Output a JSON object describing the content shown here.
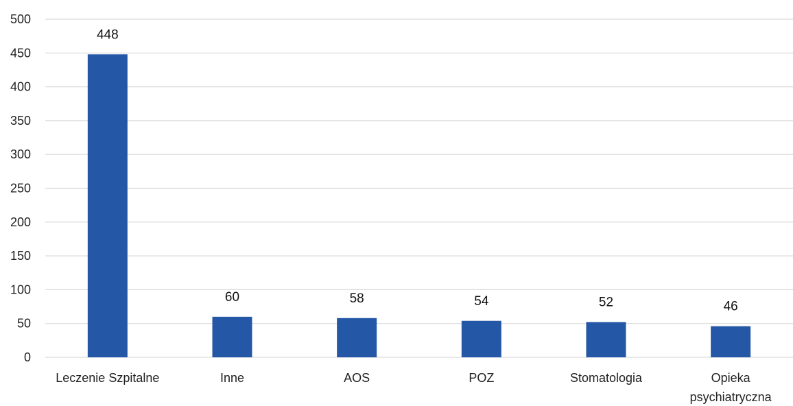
{
  "chart_data": {
    "type": "bar",
    "title": "",
    "xlabel": "",
    "ylabel": "",
    "categories": [
      "Leczenie Szpitalne",
      "Inne",
      "AOS",
      "POZ",
      "Stomatologia",
      [
        "Opieka",
        "psychiatryczna"
      ]
    ],
    "values": [
      448,
      60,
      58,
      54,
      52,
      46
    ],
    "data_labels": [
      "448",
      "60",
      "58",
      "54",
      "52",
      "46"
    ],
    "ylim": [
      0,
      500
    ],
    "yticks": [
      0,
      50,
      100,
      150,
      200,
      250,
      300,
      350,
      400,
      450,
      500
    ],
    "grid": true,
    "legend": "none",
    "bar_color": "#2457a6"
  }
}
